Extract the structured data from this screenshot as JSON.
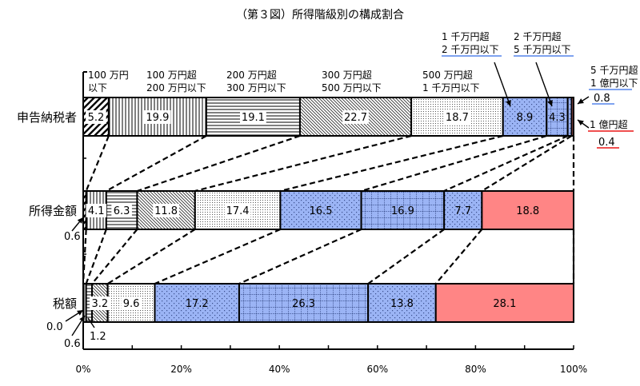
{
  "title": "（第３図）所得階級別の構成割合",
  "colors": {
    "blue": "#9BB4F5",
    "red": "#FF8585",
    "blue_underline": "#7FA3F0",
    "red_underline": "#F05050"
  },
  "chart_data": {
    "type": "bar",
    "orientation": "horizontal",
    "stacked": true,
    "normalized": true,
    "title": "（第３図）所得階級別の構成割合",
    "xlabel": "",
    "ylabel": "",
    "xlim": [
      0,
      100
    ],
    "x_ticks": [
      "0%",
      "20%",
      "40%",
      "60%",
      "80%",
      "100%"
    ],
    "grid": false,
    "categories": [
      "申告納税者",
      "所得金額",
      "税額"
    ],
    "income_brackets": [
      "100 万円以下",
      "100 万円超 200 万円以下",
      "200 万円超 300 万円以下",
      "300 万円超 500 万円以下",
      "500 万円超 1 千万円以下",
      "1 千万円超 2 千万円以下",
      "2 千万円超 5 千万円以下",
      "5 千万円超 1 億円以下",
      "1 億円超"
    ],
    "series": [
      {
        "name": "申告納税者",
        "values": [
          5.2,
          19.9,
          19.1,
          22.7,
          18.7,
          8.9,
          4.3,
          0.8,
          0.4
        ]
      },
      {
        "name": "所得金額",
        "values": [
          0.6,
          4.1,
          6.3,
          11.8,
          17.4,
          16.5,
          16.9,
          7.7,
          18.8
        ]
      },
      {
        "name": "税額",
        "values": [
          0.0,
          0.6,
          1.2,
          3.2,
          9.6,
          17.2,
          26.3,
          13.8,
          28.1
        ]
      }
    ],
    "header_labels": [
      {
        "line1": "100 万円",
        "line2": "以下"
      },
      {
        "line1": "100 万円超",
        "line2": "200 万円以下"
      },
      {
        "line1": "200 万円超",
        "line2": "300 万円以下"
      },
      {
        "line1": "300 万円超",
        "line2": "500 万円以下"
      },
      {
        "line1": "500 万円超",
        "line2": "1 千万円以下"
      },
      {
        "line1": "1 千万円超",
        "line2": "2 千万円以下"
      },
      {
        "line1": "2 千万円超",
        "line2": "5 千万円以下"
      },
      {
        "line1": "5 千万円超",
        "line2": "1 億円以下"
      },
      {
        "line1": "1 億円超",
        "line2": ""
      }
    ],
    "callouts": {
      "taxpayers_5man_1oku": "0.8",
      "taxpayers_over_1oku": "0.4",
      "income_under_100": "0.6",
      "tax_under_100": "0.0",
      "tax_100_200": "0.6",
      "tax_200_300": "1.2"
    }
  }
}
